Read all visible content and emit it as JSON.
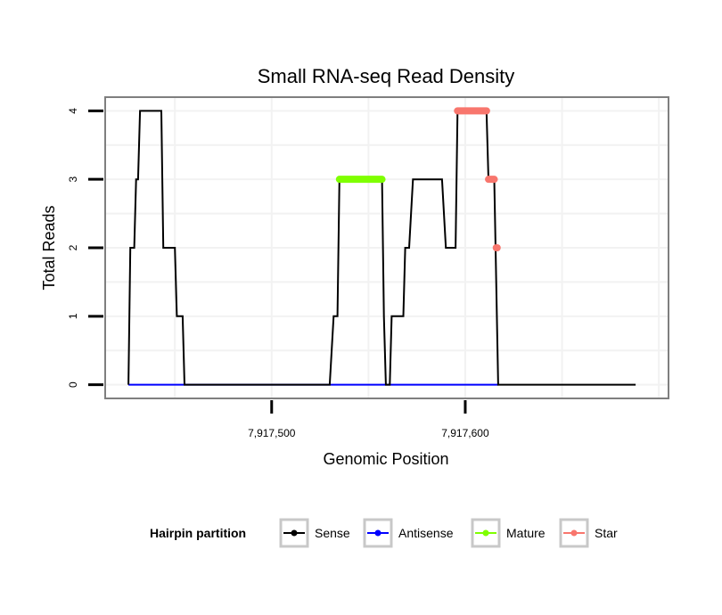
{
  "chart_data": {
    "type": "line",
    "title": "Small RNA-seq Read Density",
    "xlabel": "Genomic Position",
    "ylabel": "Total Reads",
    "xlim": [
      7917414,
      7917705
    ],
    "ylim": [
      -0.2,
      4.2
    ],
    "x_ticks": [
      7917500,
      7917600
    ],
    "x_tick_labels": [
      "7,917,500",
      "7,917,600"
    ],
    "y_ticks": [
      0,
      1,
      2,
      3,
      4
    ],
    "y_tick_labels": [
      "0",
      "1",
      "2",
      "3",
      "4"
    ],
    "grid": true,
    "legend_position": "bottom",
    "legend_title": "Hairpin partition",
    "series": [
      {
        "name": "Sense",
        "color": "#000000",
        "style": "line",
        "points": [
          [
            7917426,
            0
          ],
          [
            7917427,
            2
          ],
          [
            7917429,
            2
          ],
          [
            7917430,
            3
          ],
          [
            7917431,
            3
          ],
          [
            7917432,
            4
          ],
          [
            7917443,
            4
          ],
          [
            7917444,
            2
          ],
          [
            7917450,
            2
          ],
          [
            7917451,
            1
          ],
          [
            7917454,
            1
          ],
          [
            7917455,
            0
          ],
          [
            7917530,
            0
          ],
          [
            7917532,
            1
          ],
          [
            7917534,
            1
          ],
          [
            7917535,
            3
          ],
          [
            7917557,
            3
          ],
          [
            7917558,
            1
          ],
          [
            7917559,
            0
          ],
          [
            7917561,
            0
          ],
          [
            7917562,
            1
          ],
          [
            7917568,
            1
          ],
          [
            7917569,
            2
          ],
          [
            7917571,
            2
          ],
          [
            7917573,
            3
          ],
          [
            7917588,
            3
          ],
          [
            7917590,
            2
          ],
          [
            7917595,
            2
          ],
          [
            7917596,
            4
          ],
          [
            7917611,
            4
          ],
          [
            7917612,
            3
          ],
          [
            7917615,
            3
          ],
          [
            7917617,
            0
          ],
          [
            7917688,
            0
          ]
        ]
      },
      {
        "name": "Antisense",
        "color": "#0000ff",
        "style": "line",
        "points": [
          [
            7917426,
            0
          ],
          [
            7917617,
            0
          ]
        ]
      },
      {
        "name": "Mature",
        "color": "#7fff00",
        "style": "points",
        "points": [
          [
            7917535,
            3
          ],
          [
            7917557,
            3
          ]
        ]
      },
      {
        "name": "Star",
        "color": "#f8766d",
        "style": "points",
        "segments": [
          [
            [
              7917596,
              4
            ],
            [
              7917611,
              4
            ]
          ],
          [
            [
              7917612,
              3
            ],
            [
              7917615,
              3
            ]
          ],
          [
            [
              7917616,
              2
            ],
            [
              7917616.5,
              2
            ]
          ]
        ]
      }
    ]
  }
}
